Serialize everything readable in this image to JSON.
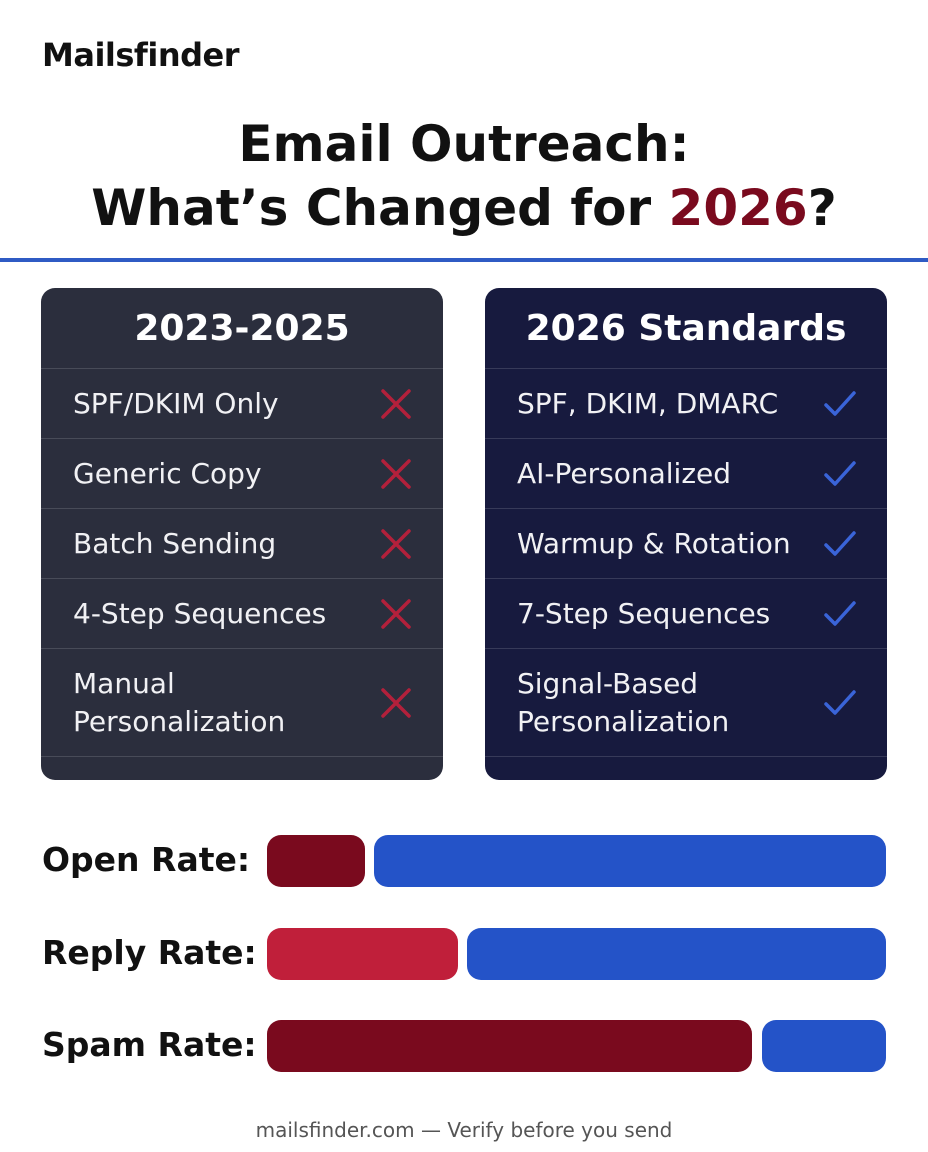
{
  "brand": "Mailsfinder",
  "title": {
    "line1": "Email Outreach:",
    "line2_before": "What’s Changed for ",
    "line2_highlight": "2026",
    "line2_after": "?"
  },
  "columns": [
    {
      "heading": "2023-2025",
      "rows": [
        "SPF/DKIM Only",
        "Generic Copy",
        "Batch Sending",
        "4-Step Sequences",
        "Manual Personalization"
      ]
    },
    {
      "heading": "2026 Standards",
      "rows": [
        "SPF, DKIM, DMARC",
        "AI-Personalized",
        "Warmup & Rotation",
        "7-Step Sequences",
        "Signal-Based Personalization"
      ]
    }
  ],
  "metrics": [
    "Open Rate:",
    "Reply Rate:",
    "Spam Rate:"
  ],
  "footer": "mailsfinder.com — Verify before you send"
}
